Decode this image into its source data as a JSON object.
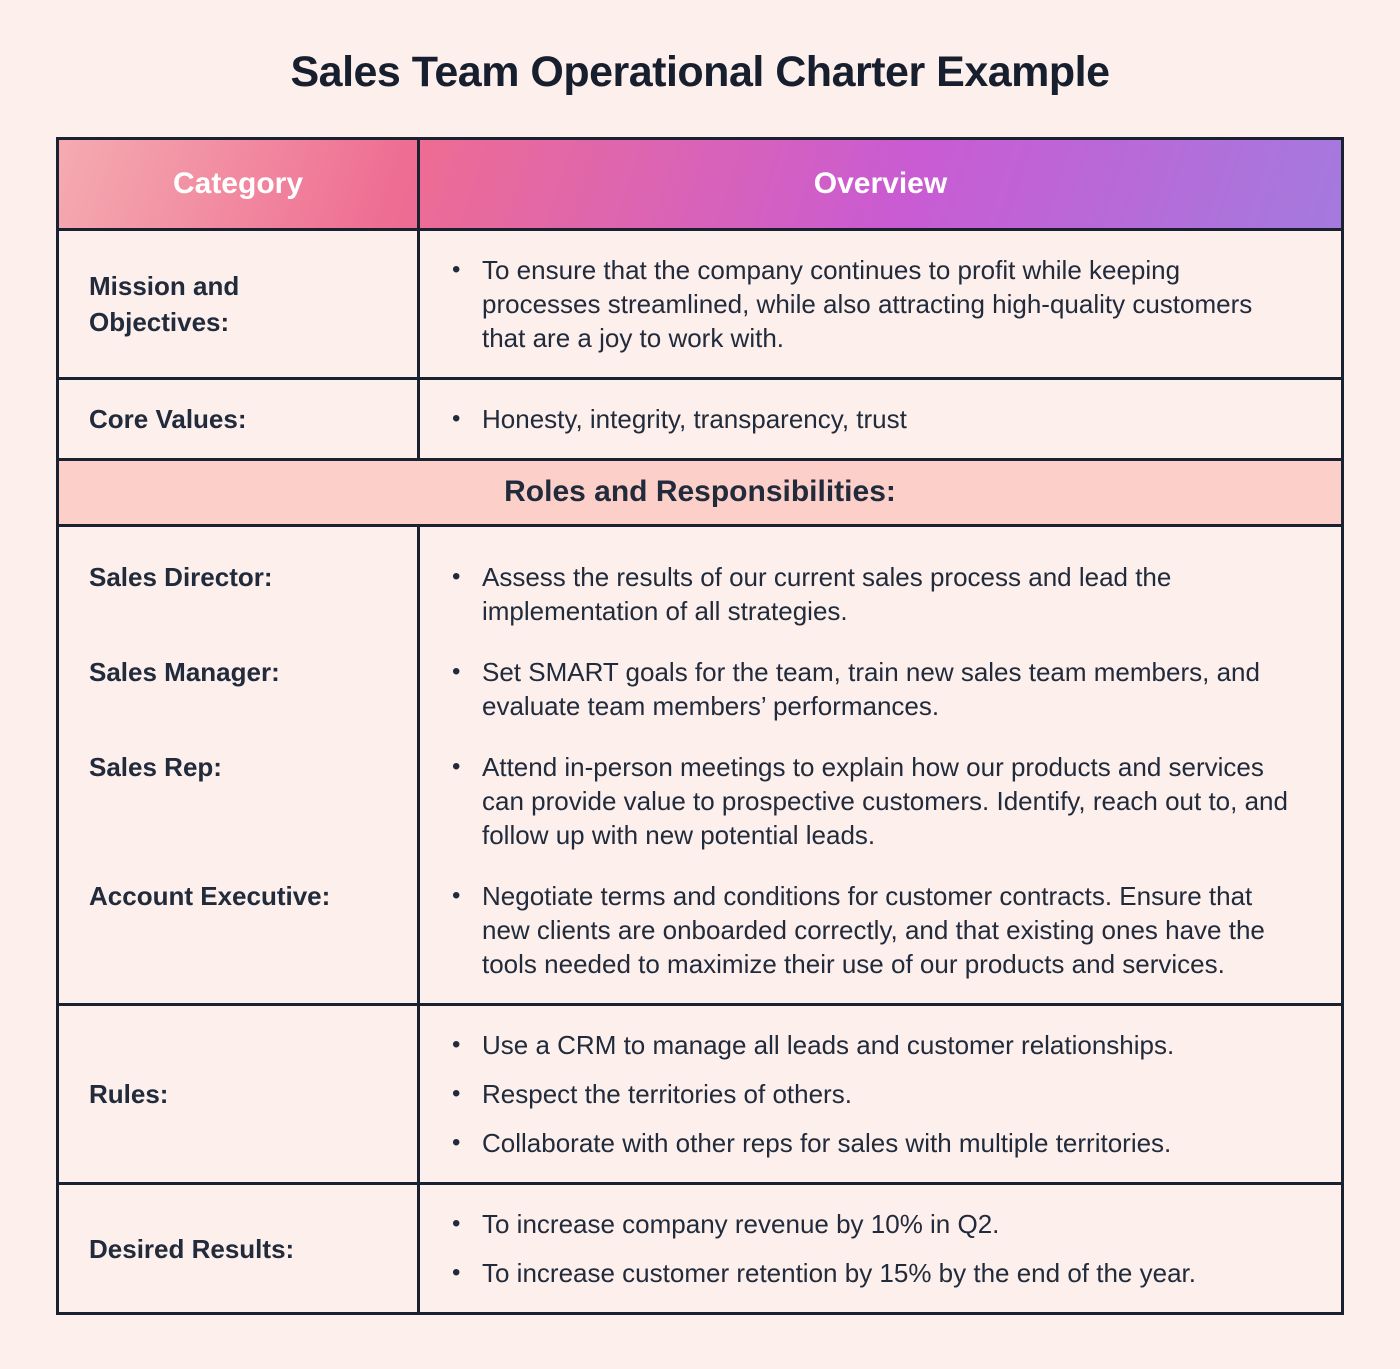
{
  "page": {
    "title": "Sales Team Operational Charter Example"
  },
  "table": {
    "bullet_glyph": "•",
    "headers": {
      "category": "Category",
      "overview": "Overview"
    },
    "rows_top": [
      {
        "label": "Mission and Objectives:",
        "bullets": [
          "To ensure that the company continues to profit while keeping processes streamlined, while also attracting high-quality customers that are a joy to work with."
        ]
      },
      {
        "label": "Core Values:",
        "bullets": [
          " Honesty, integrity, transparency, trust"
        ]
      }
    ],
    "section_banner": "Roles and Responsibilities:",
    "roles": [
      {
        "label": "Sales Director:",
        "bullet": "Assess the results of our current sales process and lead the implementation of all strategies."
      },
      {
        "label": "Sales Manager:",
        "bullet": "Set SMART goals for the team, train new sales team members, and evaluate team members’ performances."
      },
      {
        "label": "Sales Rep:",
        "bullet": "Attend in-person meetings to explain how our products and services can provide value to prospective customers. Identify, reach out to, and follow up with new potential leads."
      },
      {
        "label": "Account Executive:",
        "bullet": "Negotiate terms and conditions for customer contracts. Ensure that new clients are onboarded correctly, and that existing ones have the tools needed to maximize their use of our products and services."
      }
    ],
    "rows_bottom": [
      {
        "label": "Rules:",
        "bullets": [
          "Use a CRM to manage all leads and customer relationships.",
          "Respect the territories of others.",
          "Collaborate with other reps for sales with multiple territories."
        ]
      },
      {
        "label": "Desired Results:",
        "bullets": [
          "To increase company revenue by 10% in Q2.",
          "To increase customer retention by 15% by the end of the year."
        ]
      }
    ]
  },
  "theme": {
    "page_bg": "#fcefec",
    "banner_bg": "#fcd0c9",
    "border": "#1a2232",
    "text": "#212b3b",
    "header_text": "#ffffff",
    "gradient_start": "#f5abb1",
    "gradient_pink": "#ee6d92",
    "gradient_magenta": "#c95bd3",
    "gradient_end": "#a47ade"
  }
}
